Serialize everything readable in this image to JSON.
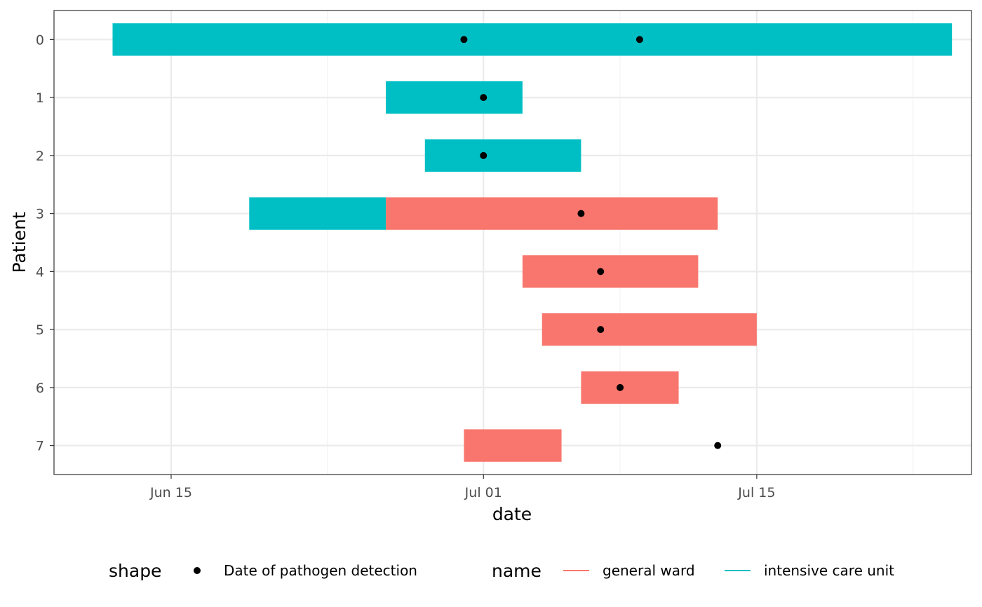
{
  "chart_data": {
    "type": "gantt",
    "xlabel": "date",
    "ylabel": "Patient",
    "x_ticks": [
      {
        "date": "2020-06-15",
        "label": "Jun 15"
      },
      {
        "date": "2020-07-01",
        "label": "Jul 01"
      },
      {
        "date": "2020-07-15",
        "label": "Jul 15"
      }
    ],
    "x_minor_ticks": [
      "2020-06-23",
      "2020-07-08",
      "2020-07-23"
    ],
    "xlim": [
      "2020-06-09",
      "2020-07-26"
    ],
    "patients": [
      "0",
      "1",
      "2",
      "3",
      "4",
      "5",
      "6",
      "7"
    ],
    "stays": [
      {
        "patient": "0",
        "ward": "intensive care unit",
        "start": "2020-06-12",
        "end": "2020-07-25"
      },
      {
        "patient": "1",
        "ward": "intensive care unit",
        "start": "2020-06-26",
        "end": "2020-07-03"
      },
      {
        "patient": "2",
        "ward": "intensive care unit",
        "start": "2020-06-28",
        "end": "2020-07-06"
      },
      {
        "patient": "3",
        "ward": "intensive care unit",
        "start": "2020-06-19",
        "end": "2020-06-26"
      },
      {
        "patient": "3",
        "ward": "general ward",
        "start": "2020-06-26",
        "end": "2020-07-13"
      },
      {
        "patient": "4",
        "ward": "general ward",
        "start": "2020-07-03",
        "end": "2020-07-12"
      },
      {
        "patient": "5",
        "ward": "general ward",
        "start": "2020-07-04",
        "end": "2020-07-15"
      },
      {
        "patient": "6",
        "ward": "general ward",
        "start": "2020-07-06",
        "end": "2020-07-11"
      },
      {
        "patient": "7",
        "ward": "general ward",
        "start": "2020-06-30",
        "end": "2020-07-05"
      }
    ],
    "detections": [
      {
        "patient": "0",
        "date": "2020-06-30"
      },
      {
        "patient": "0",
        "date": "2020-07-09"
      },
      {
        "patient": "1",
        "date": "2020-07-01"
      },
      {
        "patient": "2",
        "date": "2020-07-01"
      },
      {
        "patient": "3",
        "date": "2020-07-06"
      },
      {
        "patient": "4",
        "date": "2020-07-07"
      },
      {
        "patient": "5",
        "date": "2020-07-07"
      },
      {
        "patient": "6",
        "date": "2020-07-08"
      },
      {
        "patient": "7",
        "date": "2020-07-13"
      }
    ],
    "colors": {
      "general ward": "#F8766D",
      "intensive care unit": "#00BFC4",
      "detection": "#000000"
    },
    "grid": true,
    "legend": {
      "position": "bottom",
      "shape_title": "shape",
      "shape_entries": [
        "Date of pathogen detection"
      ],
      "name_title": "name",
      "name_entries": [
        "general ward",
        "intensive care unit"
      ]
    }
  }
}
